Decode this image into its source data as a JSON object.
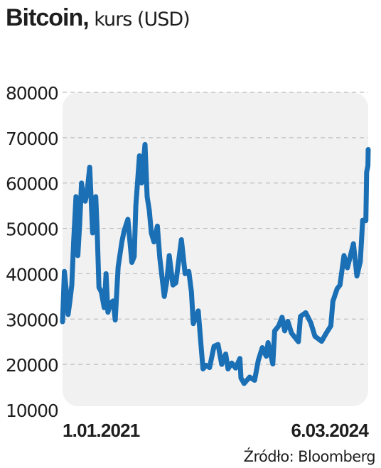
{
  "title": {
    "main": "Bitcoin,",
    "sub": " kurs (USD)"
  },
  "source": "Źródło: Bloomberg",
  "colors": {
    "line": "#1a6fb5",
    "plot_background": "#f1f1f1",
    "grid": "#bdbdbd",
    "text": "#1e1e1e"
  },
  "chart_data": {
    "type": "line",
    "title": "Bitcoin, kurs (USD)",
    "xlabel": "",
    "ylabel": "",
    "x_tick_labels": [
      "1.01.2021",
      "6.03.2024"
    ],
    "x_range": [
      "2021-01-01",
      "2024-03-06"
    ],
    "ylim": [
      10000,
      80000
    ],
    "y_ticks": [
      10000,
      20000,
      30000,
      40000,
      50000,
      60000,
      70000,
      80000
    ],
    "grid": "horizontal dashed",
    "series": [
      {
        "name": "",
        "points": [
          [
            "2021-01-01",
            29400
          ],
          [
            "2021-01-08",
            40500
          ],
          [
            "2021-01-14",
            37000
          ],
          [
            "2021-01-22",
            31000
          ],
          [
            "2021-01-29",
            34000
          ],
          [
            "2021-02-05",
            37500
          ],
          [
            "2021-02-12",
            47000
          ],
          [
            "2021-02-21",
            57000
          ],
          [
            "2021-02-28",
            44000
          ],
          [
            "2021-03-07",
            51000
          ],
          [
            "2021-03-14",
            60000
          ],
          [
            "2021-03-21",
            57000
          ],
          [
            "2021-03-28",
            56000
          ],
          [
            "2021-04-04",
            58000
          ],
          [
            "2021-04-14",
            63500
          ],
          [
            "2021-04-25",
            49000
          ],
          [
            "2021-05-07",
            57000
          ],
          [
            "2021-05-12",
            50000
          ],
          [
            "2021-05-19",
            37000
          ],
          [
            "2021-05-28",
            36000
          ],
          [
            "2021-06-08",
            32500
          ],
          [
            "2021-06-15",
            40000
          ],
          [
            "2021-06-22",
            31500
          ],
          [
            "2021-07-02",
            33500
          ],
          [
            "2021-07-12",
            34000
          ],
          [
            "2021-07-20",
            29800
          ],
          [
            "2021-07-31",
            41500
          ],
          [
            "2021-08-14",
            47000
          ],
          [
            "2021-08-23",
            49500
          ],
          [
            "2021-09-06",
            52000
          ],
          [
            "2021-09-21",
            42500
          ],
          [
            "2021-09-30",
            43800
          ],
          [
            "2021-10-06",
            55000
          ],
          [
            "2021-10-20",
            66000
          ],
          [
            "2021-10-28",
            60000
          ],
          [
            "2021-11-10",
            68500
          ],
          [
            "2021-11-18",
            57000
          ],
          [
            "2021-11-26",
            54000
          ],
          [
            "2021-12-04",
            49000
          ],
          [
            "2021-12-14",
            47000
          ],
          [
            "2021-12-27",
            50500
          ],
          [
            "2022-01-05",
            43500
          ],
          [
            "2022-01-22",
            35000
          ],
          [
            "2022-02-01",
            38500
          ],
          [
            "2022-02-10",
            44000
          ],
          [
            "2022-02-24",
            37500
          ],
          [
            "2022-03-07",
            38000
          ],
          [
            "2022-03-28",
            47500
          ],
          [
            "2022-04-11",
            40000
          ],
          [
            "2022-04-25",
            40500
          ],
          [
            "2022-05-05",
            36000
          ],
          [
            "2022-05-12",
            29000
          ],
          [
            "2022-05-31",
            31800
          ],
          [
            "2022-06-13",
            22500
          ],
          [
            "2022-06-18",
            19000
          ],
          [
            "2022-06-30",
            19800
          ],
          [
            "2022-07-13",
            19300
          ],
          [
            "2022-07-30",
            24000
          ],
          [
            "2022-08-14",
            24400
          ],
          [
            "2022-08-28",
            20000
          ],
          [
            "2022-09-12",
            22300
          ],
          [
            "2022-09-21",
            19000
          ],
          [
            "2022-10-05",
            20300
          ],
          [
            "2022-10-20",
            19200
          ],
          [
            "2022-11-05",
            21300
          ],
          [
            "2022-11-09",
            17000
          ],
          [
            "2022-11-21",
            15800
          ],
          [
            "2022-12-12",
            17200
          ],
          [
            "2022-12-31",
            16500
          ],
          [
            "2023-01-14",
            20900
          ],
          [
            "2023-01-29",
            23700
          ],
          [
            "2023-02-13",
            21800
          ],
          [
            "2023-02-20",
            24800
          ],
          [
            "2023-03-10",
            20100
          ],
          [
            "2023-03-17",
            27400
          ],
          [
            "2023-04-01",
            28500
          ],
          [
            "2023-04-14",
            30400
          ],
          [
            "2023-04-24",
            27400
          ],
          [
            "2023-05-06",
            29500
          ],
          [
            "2023-05-20",
            26900
          ],
          [
            "2023-06-15",
            25000
          ],
          [
            "2023-06-23",
            30600
          ],
          [
            "2023-07-13",
            31400
          ],
          [
            "2023-08-01",
            29200
          ],
          [
            "2023-08-17",
            26200
          ],
          [
            "2023-09-11",
            25100
          ],
          [
            "2023-09-30",
            27000
          ],
          [
            "2023-10-16",
            28500
          ],
          [
            "2023-10-24",
            33900
          ],
          [
            "2023-11-09",
            36700
          ],
          [
            "2023-11-20",
            37500
          ],
          [
            "2023-12-05",
            44000
          ],
          [
            "2023-12-18",
            41300
          ],
          [
            "2024-01-10",
            46600
          ],
          [
            "2024-01-23",
            39500
          ],
          [
            "2024-02-05",
            42700
          ],
          [
            "2024-02-14",
            51800
          ],
          [
            "2024-02-26",
            51700
          ],
          [
            "2024-02-29",
            62400
          ],
          [
            "2024-03-05",
            63800
          ],
          [
            "2024-03-06",
            67400
          ]
        ]
      }
    ]
  }
}
